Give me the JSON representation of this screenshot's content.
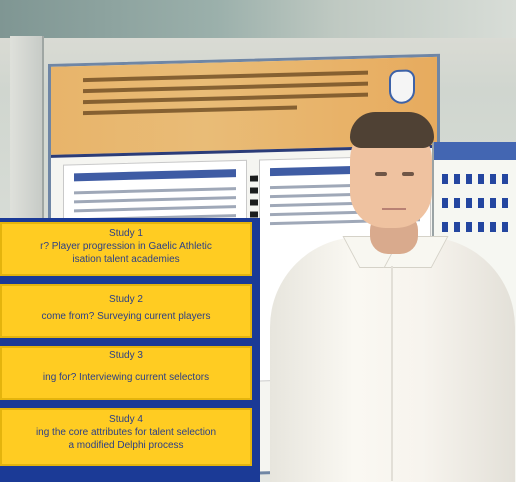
{
  "studies": [
    {
      "title": "Study 1",
      "lines": [
        "r? Player progression in Gaelic Athletic",
        "isation talent academies"
      ]
    },
    {
      "title": "Study 2",
      "lines": [
        "come from? Surveying current players"
      ]
    },
    {
      "title": "Study 3",
      "lines": [
        "ing for? Interviewing current selectors"
      ]
    },
    {
      "title": "Study 4",
      "lines": [
        "ing the core attributes for talent selection",
        "a modified Delphi process"
      ]
    }
  ],
  "colors": {
    "panel_blue": "#1b3a96",
    "study_yellow": "#ffcc22",
    "study_text": "#2b3f87",
    "poster_header": "#e8b46a"
  }
}
